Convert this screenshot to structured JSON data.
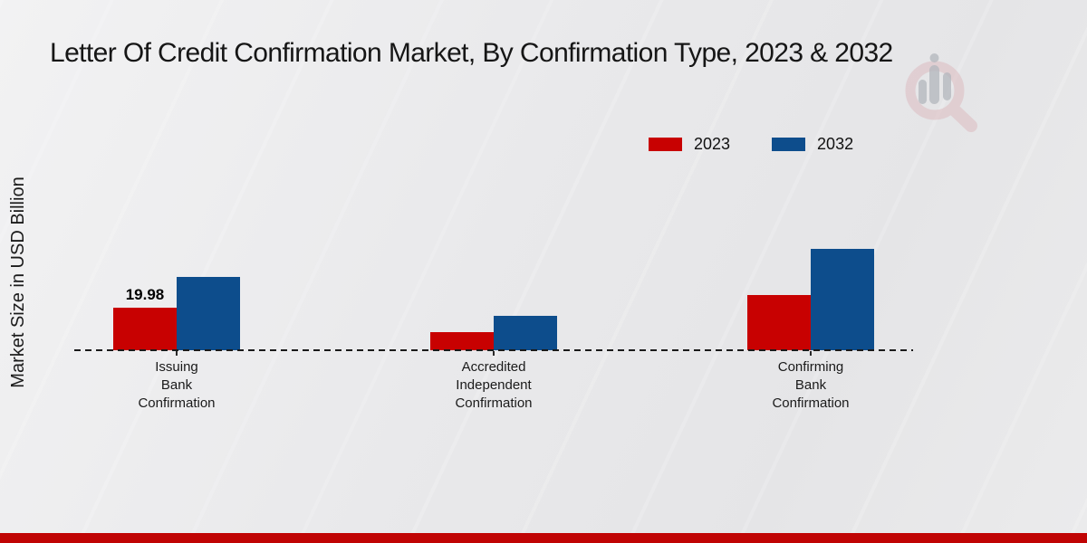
{
  "page": {
    "title": "Letter Of Credit Confirmation Market, By Confirmation Type, 2023 & 2032"
  },
  "chart_data": {
    "type": "bar",
    "title": "Letter Of Credit Confirmation Market, By Confirmation Type, 2023 & 2032",
    "xlabel": "",
    "ylabel": "Market Size in USD Billion",
    "ylim": [
      0,
      50
    ],
    "grid": false,
    "legend_position": "top-right",
    "axis_style": "dashed-baseline-only",
    "categories": [
      "Issuing\nBank\nConfirmation",
      "Accredited\nIndependent\nConfirmation",
      "Confirming\nBank\nConfirmation"
    ],
    "series": [
      {
        "name": "2023",
        "color": "#c80101",
        "values": [
          19.98,
          8.5,
          25.9
        ]
      },
      {
        "name": "2032",
        "color": "#0d4d8c",
        "values": [
          34.5,
          16.1,
          47.6
        ]
      }
    ],
    "annotations": [
      {
        "text": "19.98",
        "category_index": 0,
        "series_index": 0
      }
    ]
  },
  "watermark": {
    "icon": "magnifier-with-bars-logo"
  },
  "footer": {
    "color": "#c00404"
  }
}
